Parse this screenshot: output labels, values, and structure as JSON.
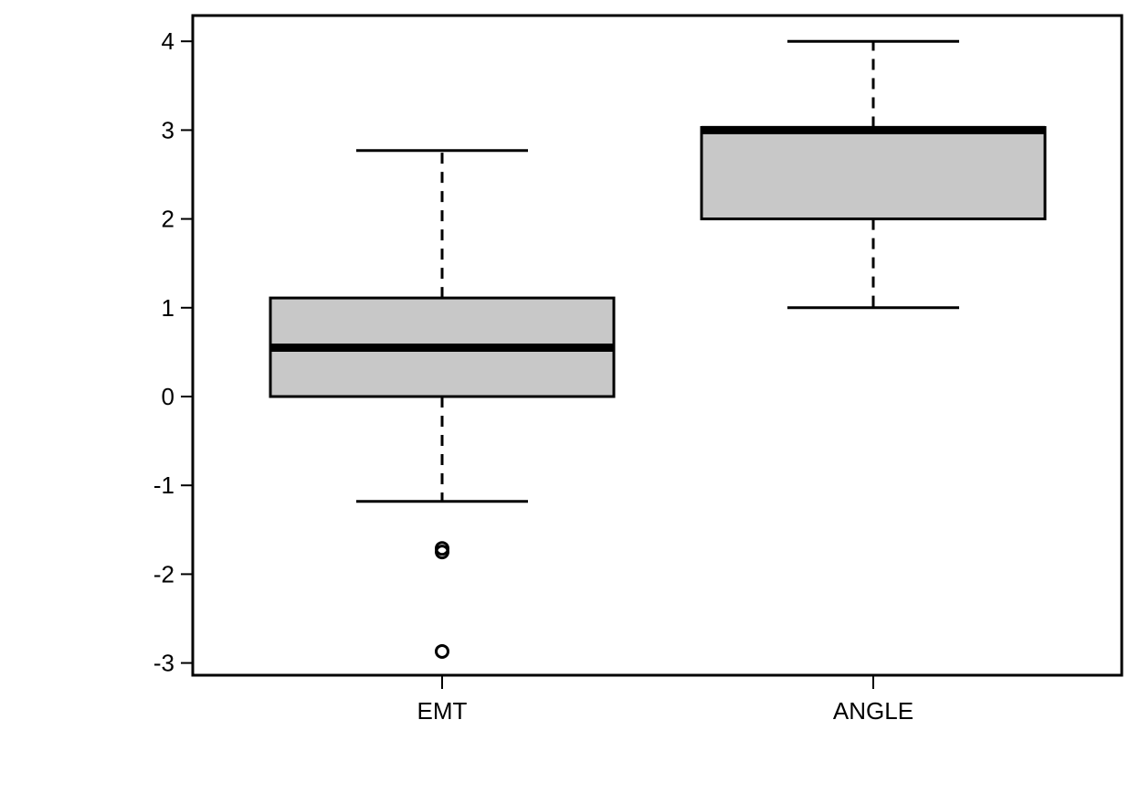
{
  "chart_data": {
    "type": "box",
    "title": "",
    "xlabel": "",
    "ylabel": "",
    "ylim": [
      -3.15,
      4.3
    ],
    "yticks": [
      -3,
      -2,
      -1,
      0,
      1,
      2,
      3,
      4
    ],
    "categories": [
      "EMT",
      "ANGLE"
    ],
    "box_fill": "#c8c8c8",
    "series": [
      {
        "category": "EMT",
        "whisker_low": -1.18,
        "q1": 0.0,
        "median": 0.55,
        "q3": 1.11,
        "whisker_high": 2.77,
        "outliers": [
          -1.71,
          -1.75,
          -2.87
        ]
      },
      {
        "category": "ANGLE",
        "whisker_low": 1.0,
        "q1": 2.0,
        "median": 3.0,
        "q3": 3.03,
        "whisker_high": 4.0,
        "outliers": []
      }
    ]
  }
}
